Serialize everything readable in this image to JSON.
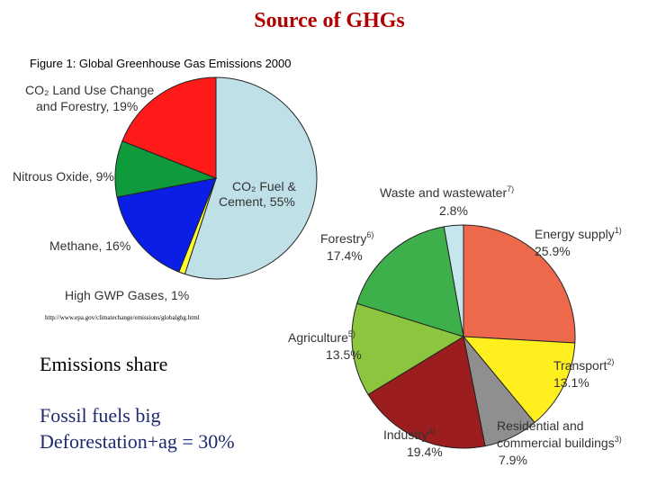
{
  "slide": {
    "title": "Source of GHGs",
    "source_url": "http://www.epa.gov/climatechange/emissions/globalghg.html",
    "heading": "Emissions share",
    "lines": [
      "Fossil fuels big",
      "Deforestation+ag = 30%"
    ]
  },
  "chart_data": [
    {
      "type": "pie",
      "title": "Figure 1: Global Greenhouse Gas Emissions 2000",
      "slices": [
        {
          "label": "CO₂ Fuel & Cement, 55%",
          "value": 55,
          "color": "#bfe0e6"
        },
        {
          "label": "High GWP Gases, 1%",
          "value": 1,
          "color": "#ffff33"
        },
        {
          "label": "Methane, 16%",
          "value": 16,
          "color": "#0b1ee6"
        },
        {
          "label": "Nitrous Oxide, 9%",
          "value": 9,
          "color": "#0f9a3c"
        },
        {
          "label": "CO₂ Land Use Change and Forestry, 19%",
          "value": 19,
          "color": "#ff1a1a"
        }
      ]
    },
    {
      "type": "pie",
      "slices": [
        {
          "name": "Energy supply",
          "note": "1)",
          "value": 25.9,
          "display": "25.9%",
          "color": "#ee694b"
        },
        {
          "name": "Transport",
          "note": "2)",
          "value": 13.1,
          "display": "13.1%",
          "color": "#ffef1f"
        },
        {
          "name": "Residential and commercial buildings",
          "note": "3)",
          "value": 7.9,
          "display": "7.9%",
          "color": "#8f8f8f"
        },
        {
          "name": "Industry",
          "note": "4)",
          "value": 19.4,
          "display": "19.4%",
          "color": "#9b1d1d"
        },
        {
          "name": "Agriculture",
          "note": "5)",
          "value": 13.5,
          "display": "13.5%",
          "color": "#8cc63f"
        },
        {
          "name": "Forestry",
          "note": "6)",
          "value": 17.4,
          "display": "17.4%",
          "color": "#3db04b"
        },
        {
          "name": "Waste and wastewater",
          "note": "7)",
          "value": 2.8,
          "display": "2.8%",
          "color": "#c6e6ee"
        }
      ]
    }
  ]
}
